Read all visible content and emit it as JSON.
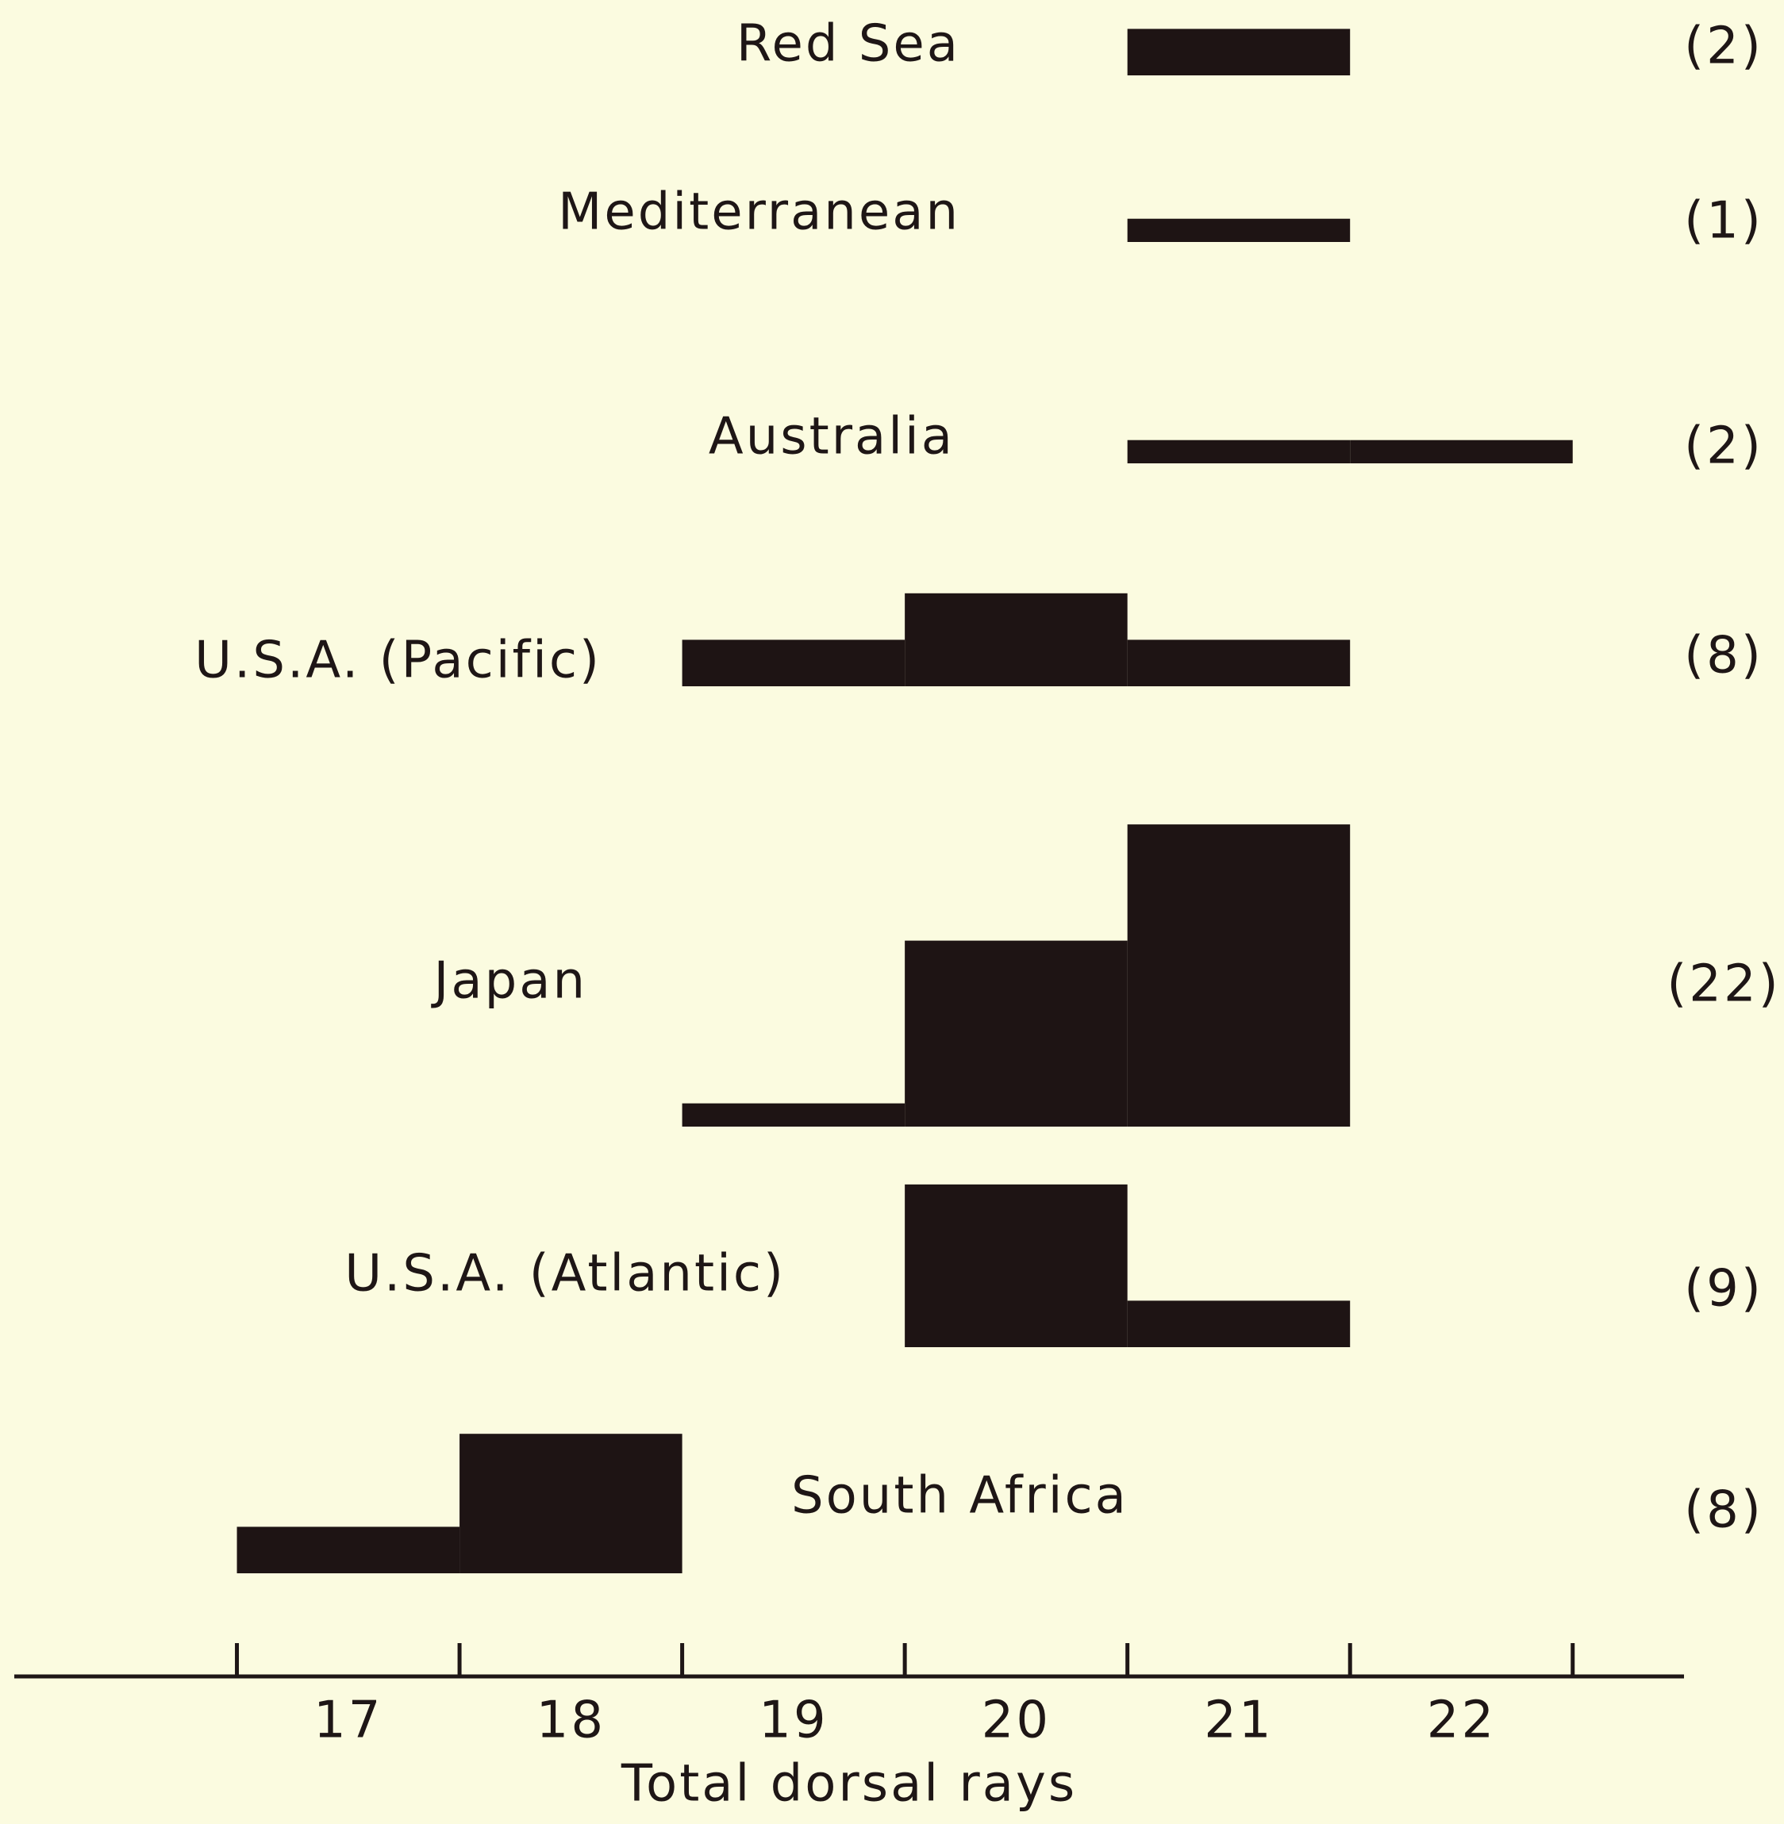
{
  "chart_data": {
    "type": "histogram-stack",
    "x_label": "Total dorsal rays",
    "x": [
      17,
      18,
      19,
      20,
      21,
      22
    ],
    "xlim": [
      15.5,
      23
    ],
    "xticks": [
      16.5,
      17.5,
      18.5,
      19.5,
      20.5,
      21.5,
      22.5
    ],
    "color": "#1e1414",
    "series": [
      {
        "name": "Red Sea",
        "count_label": "(2)",
        "values": [
          null,
          null,
          null,
          null,
          2,
          null
        ]
      },
      {
        "name": "Mediterranean",
        "count_label": "(1)",
        "values": [
          null,
          null,
          null,
          null,
          1,
          null
        ]
      },
      {
        "name": "Australia",
        "count_label": "(2)",
        "values": [
          null,
          null,
          null,
          null,
          1,
          1
        ]
      },
      {
        "name": "U.S.A.   (Pacific)",
        "count_label": "(8)",
        "values": [
          null,
          null,
          2,
          4,
          2,
          null
        ]
      },
      {
        "name": "Japan",
        "count_label": "(22)",
        "values": [
          null,
          null,
          1,
          8,
          13,
          null
        ]
      },
      {
        "name": "U.S.A.   (Atlantic)",
        "count_label": "(9)",
        "values": [
          null,
          null,
          null,
          7,
          2,
          null
        ]
      },
      {
        "name": "South Africa",
        "count_label": "(8)",
        "values": [
          2,
          6,
          null,
          null,
          null,
          null
        ]
      }
    ]
  }
}
